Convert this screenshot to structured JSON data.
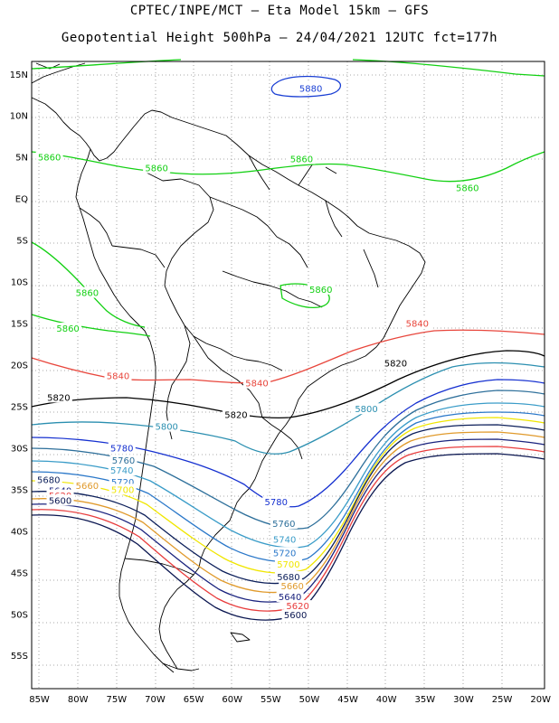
{
  "header": {
    "line1": "CPTEC/INPE/MCT –  Eta Model 15km – GFS",
    "line2": "Geopotential Height 500hPa – 24/04/2021 12UTC fct=177h"
  },
  "axes": {
    "lon_labels": [
      "85W",
      "80W",
      "75W",
      "70W",
      "65W",
      "60W",
      "55W",
      "50W",
      "45W",
      "40W",
      "35W",
      "30W",
      "25W",
      "20W"
    ],
    "lat_labels": [
      "15N",
      "10N",
      "5N",
      "EQ",
      "5S",
      "10S",
      "15S",
      "20S",
      "25S",
      "30S",
      "35S",
      "40S",
      "45S",
      "50S",
      "55S"
    ],
    "lon_range": [
      -86,
      -19.5
    ],
    "lat_range": [
      16.5,
      -59
    ],
    "grid": "dotted"
  },
  "colors": {
    "c5880": "#1a3fd4",
    "c5860": "#12d012",
    "c5840": "#e8463c",
    "c5820": "#000000",
    "c5800": "#2b8fb0",
    "c5780": "#1530d0",
    "c5760": "#2d6f9a",
    "c5740": "#3a9cc8",
    "c5720": "#2b78c9",
    "c5700": "#f0e600",
    "c5680": "#0c1f5a",
    "c5660": "#e09a2c",
    "c5640": "#1a237e",
    "c5620": "#e83c3c",
    "c5600": "#0a1650"
  },
  "contour_labels": [
    {
      "text": "5880",
      "color": "c5880",
      "lon": -49.8,
      "lat": 13.3
    },
    {
      "text": "5860",
      "color": "c5860",
      "lon": -83.7,
      "lat": 5.0
    },
    {
      "text": "5860",
      "color": "c5860",
      "lon": -69.8,
      "lat": 3.7
    },
    {
      "text": "5860",
      "color": "c5860",
      "lon": -51.0,
      "lat": 4.8
    },
    {
      "text": "5860",
      "color": "c5860",
      "lon": -29.5,
      "lat": 1.3
    },
    {
      "text": "5860",
      "color": "c5860",
      "lon": -78.8,
      "lat": -11.3
    },
    {
      "text": "5860",
      "color": "c5860",
      "lon": -81.3,
      "lat": -15.6
    },
    {
      "text": "5860",
      "color": "c5860",
      "lon": -48.5,
      "lat": -10.9
    },
    {
      "text": "5840",
      "color": "c5840",
      "lon": -36.0,
      "lat": -15.0
    },
    {
      "text": "5840",
      "color": "c5840",
      "lon": -74.8,
      "lat": -21.3
    },
    {
      "text": "5840",
      "color": "c5840",
      "lon": -56.8,
      "lat": -22.2
    },
    {
      "text": "5820",
      "color": "c5820",
      "lon": -82.5,
      "lat": -23.9
    },
    {
      "text": "5820",
      "color": "c5820",
      "lon": -38.8,
      "lat": -19.8
    },
    {
      "text": "5820",
      "color": "c5820",
      "lon": -59.5,
      "lat": -26.0
    },
    {
      "text": "5800",
      "color": "c5800",
      "lon": -68.5,
      "lat": -27.4
    },
    {
      "text": "5800",
      "color": "c5800",
      "lon": -42.6,
      "lat": -25.3
    },
    {
      "text": "5780",
      "color": "c5780",
      "lon": -74.3,
      "lat": -30.0
    },
    {
      "text": "5780",
      "color": "c5780",
      "lon": -54.3,
      "lat": -36.5
    },
    {
      "text": "5760",
      "color": "c5760",
      "lon": -74.1,
      "lat": -31.5
    },
    {
      "text": "5760",
      "color": "c5760",
      "lon": -53.3,
      "lat": -39.1
    },
    {
      "text": "5740",
      "color": "c5740",
      "lon": -74.3,
      "lat": -32.7
    },
    {
      "text": "5740",
      "color": "c5740",
      "lon": -53.2,
      "lat": -41.0
    },
    {
      "text": "5720",
      "color": "c5720",
      "lon": -74.2,
      "lat": -34.1
    },
    {
      "text": "5720",
      "color": "c5720",
      "lon": -53.2,
      "lat": -42.6
    },
    {
      "text": "5700",
      "color": "c5700",
      "lon": -74.2,
      "lat": -35.0
    },
    {
      "text": "5700",
      "color": "c5700",
      "lon": -52.7,
      "lat": -44.0
    },
    {
      "text": "5680",
      "color": "c5680",
      "lon": -83.8,
      "lat": -33.8
    },
    {
      "text": "5680",
      "color": "c5680",
      "lon": -52.7,
      "lat": -45.5
    },
    {
      "text": "5660",
      "color": "c5660",
      "lon": -78.8,
      "lat": -34.5
    },
    {
      "text": "5660",
      "color": "c5660",
      "lon": -52.2,
      "lat": -46.6
    },
    {
      "text": "5640",
      "color": "c5640",
      "lon": -82.3,
      "lat": -35.1
    },
    {
      "text": "5640",
      "color": "c5640",
      "lon": -52.5,
      "lat": -47.9
    },
    {
      "text": "5620",
      "color": "c5620",
      "lon": -82.3,
      "lat": -35.7
    },
    {
      "text": "5620",
      "color": "c5620",
      "lon": -51.5,
      "lat": -49.0
    },
    {
      "text": "5600",
      "color": "c5600",
      "lon": -82.3,
      "lat": -36.3
    },
    {
      "text": "5600",
      "color": "c5600",
      "lon": -51.8,
      "lat": -50.1
    }
  ]
}
